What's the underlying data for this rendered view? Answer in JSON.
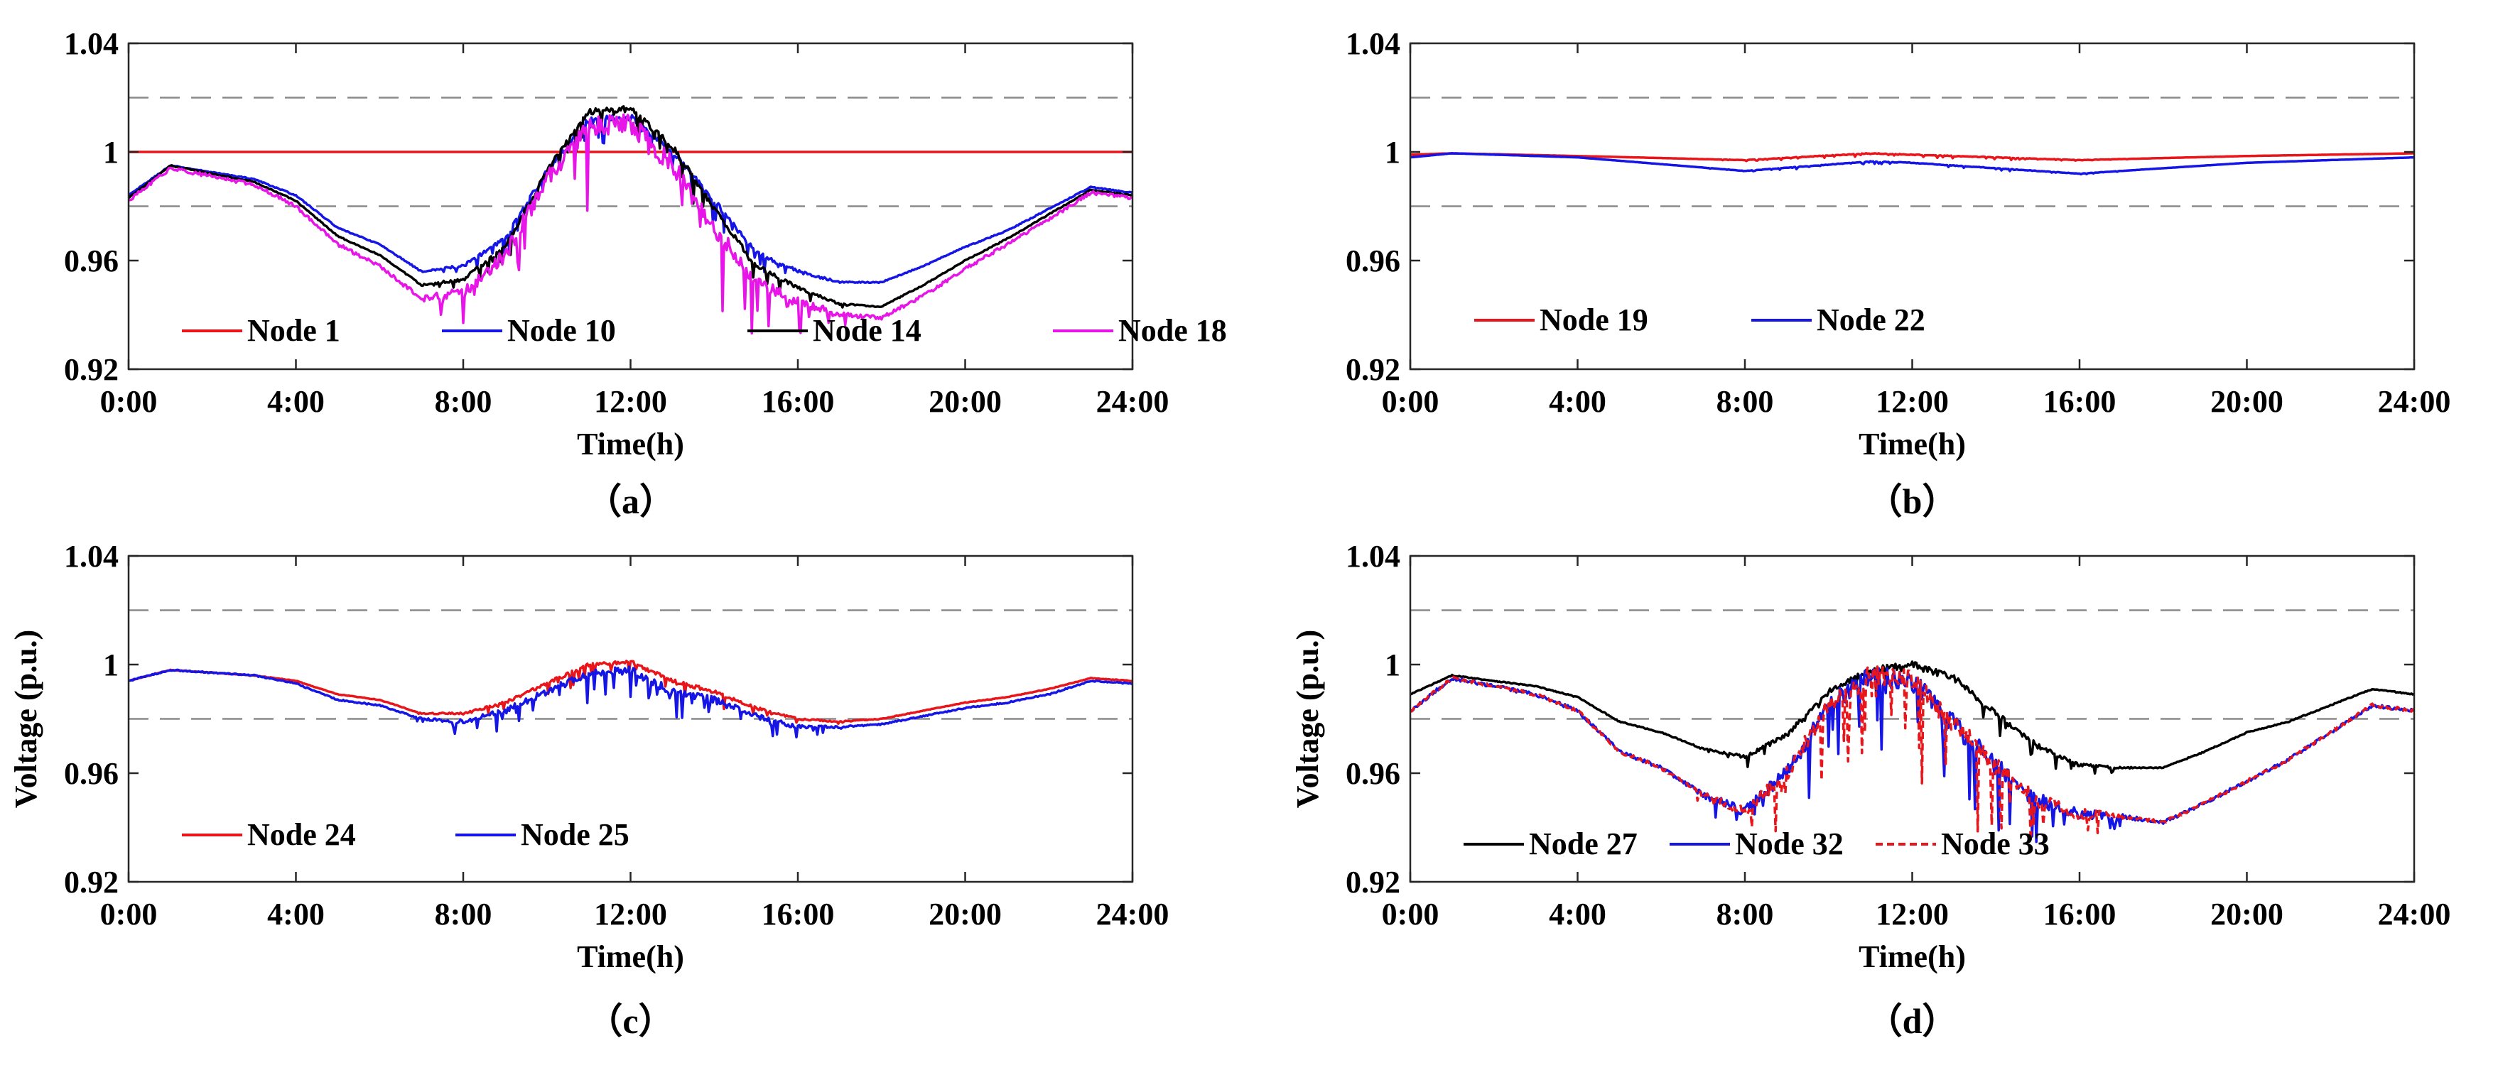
{
  "chart_data": [
    {
      "id": "a",
      "type": "line",
      "caption": "（a）",
      "xlabel": "Time(h)",
      "ylabel": "",
      "xlim": [
        0,
        24
      ],
      "ylim": [
        0.92,
        1.04
      ],
      "xticks": [
        0,
        4,
        8,
        12,
        16,
        20,
        24
      ],
      "xtick_labels": [
        "0:00",
        "4:00",
        "8:00",
        "12:00",
        "16:00",
        "20:00",
        "24:00"
      ],
      "yticks": [
        0.92,
        0.96,
        1.0,
        1.04
      ],
      "ytick_labels": [
        "0.92",
        "0.96",
        "1",
        "1.04"
      ],
      "reference_lines": [
        0.98,
        1.02
      ],
      "legend": [
        "Node 1",
        "Node 10",
        "Node 14",
        "Node 18"
      ],
      "series": [
        {
          "name": "Node 1",
          "color": "#e8151b",
          "noise": 0,
          "x": [
            0,
            24
          ],
          "values": [
            1.0,
            1.0
          ]
        },
        {
          "name": "Node 10",
          "color": "#1515e6",
          "noise": 0.5,
          "x": [
            0,
            1,
            3,
            4,
            5,
            6,
            7,
            8,
            9,
            10,
            11,
            12,
            13,
            14,
            15,
            16,
            17,
            18,
            19,
            20,
            21,
            22,
            23,
            24
          ],
          "values": [
            0.984,
            0.995,
            0.99,
            0.984,
            0.972,
            0.966,
            0.956,
            0.958,
            0.968,
            0.993,
            1.012,
            1.013,
            1.0,
            0.982,
            0.963,
            0.956,
            0.952,
            0.952,
            0.958,
            0.965,
            0.971,
            0.979,
            0.987,
            0.985
          ]
        },
        {
          "name": "Node 14",
          "color": "#000000",
          "noise": 0.5,
          "x": [
            0,
            1,
            3,
            4,
            5,
            6,
            7,
            8,
            9,
            10,
            11,
            12,
            13,
            14,
            15,
            16,
            17,
            18,
            19,
            20,
            21,
            22,
            23,
            24
          ],
          "values": [
            0.983,
            0.995,
            0.989,
            0.982,
            0.969,
            0.962,
            0.951,
            0.953,
            0.965,
            0.993,
            1.015,
            1.016,
            1.002,
            0.979,
            0.958,
            0.95,
            0.944,
            0.943,
            0.951,
            0.96,
            0.968,
            0.977,
            0.986,
            0.984
          ]
        },
        {
          "name": "Node 18",
          "color": "#e815e8",
          "noise": 1.6,
          "x": [
            0,
            1,
            3,
            4,
            5,
            6,
            7,
            8,
            9,
            10,
            11,
            12,
            13,
            14,
            15,
            16,
            17,
            18,
            19,
            20,
            21,
            22,
            23,
            24
          ],
          "values": [
            0.982,
            0.994,
            0.988,
            0.98,
            0.966,
            0.958,
            0.946,
            0.948,
            0.962,
            0.99,
            1.01,
            1.01,
            0.995,
            0.972,
            0.952,
            0.945,
            0.94,
            0.939,
            0.947,
            0.957,
            0.966,
            0.975,
            0.985,
            0.983
          ]
        }
      ]
    },
    {
      "id": "b",
      "type": "line",
      "caption": "（b）",
      "xlabel": "Time(h)",
      "ylabel": "",
      "xlim": [
        0,
        24
      ],
      "ylim": [
        0.92,
        1.04
      ],
      "xticks": [
        0,
        4,
        8,
        12,
        16,
        20,
        24
      ],
      "xtick_labels": [
        "0:00",
        "4:00",
        "8:00",
        "12:00",
        "16:00",
        "20:00",
        "24:00"
      ],
      "yticks": [
        0.92,
        0.96,
        1.0,
        1.04
      ],
      "ytick_labels": [
        "0.92",
        "0.96",
        "1",
        "1.04"
      ],
      "reference_lines": [
        0.98,
        1.02
      ],
      "legend": [
        "Node 19",
        "Node 22"
      ],
      "series": [
        {
          "name": "Node 19",
          "color": "#e8151b",
          "noise": 0.05,
          "x": [
            0,
            1,
            4,
            8,
            11,
            12,
            16,
            20,
            24
          ],
          "values": [
            0.999,
            0.9995,
            0.9985,
            0.997,
            0.9995,
            0.999,
            0.997,
            0.9985,
            0.9995
          ]
        },
        {
          "name": "Node 22",
          "color": "#1515e6",
          "noise": 0.05,
          "x": [
            0,
            1,
            4,
            8,
            11,
            12,
            16,
            20,
            24
          ],
          "values": [
            0.998,
            0.9995,
            0.998,
            0.993,
            0.9965,
            0.996,
            0.992,
            0.996,
            0.998
          ]
        }
      ]
    },
    {
      "id": "c",
      "type": "line",
      "caption": "（c）",
      "xlabel": "Time(h)",
      "ylabel": "Voltage (p.u.)",
      "xlim": [
        0,
        24
      ],
      "ylim": [
        0.92,
        1.04
      ],
      "xticks": [
        0,
        4,
        8,
        12,
        16,
        20,
        24
      ],
      "xtick_labels": [
        "0:00",
        "4:00",
        "8:00",
        "12:00",
        "16:00",
        "20:00",
        "24:00"
      ],
      "yticks": [
        0.92,
        0.96,
        1.0,
        1.04
      ],
      "ytick_labels": [
        "0.92",
        "0.96",
        "1",
        "1.04"
      ],
      "reference_lines": [
        0.98,
        1.02
      ],
      "legend": [
        "Node 24",
        "Node 25"
      ],
      "series": [
        {
          "name": "Node 24",
          "color": "#e8151b",
          "noise": 0.3,
          "x": [
            0,
            1,
            3,
            4,
            5,
            6,
            7,
            8,
            9,
            10,
            11,
            12,
            13,
            14,
            15,
            16,
            17,
            18,
            19,
            20,
            21,
            22,
            23,
            24
          ],
          "values": [
            0.994,
            0.998,
            0.996,
            0.994,
            0.989,
            0.987,
            0.982,
            0.982,
            0.986,
            0.993,
            1.0,
            1.001,
            0.994,
            0.99,
            0.984,
            0.98,
            0.979,
            0.98,
            0.983,
            0.986,
            0.988,
            0.991,
            0.995,
            0.994
          ]
        },
        {
          "name": "Node 25",
          "color": "#1515e6",
          "noise": 0.6,
          "x": [
            0,
            1,
            3,
            4,
            5,
            6,
            7,
            8,
            9,
            10,
            11,
            12,
            13,
            14,
            15,
            16,
            17,
            18,
            19,
            20,
            21,
            22,
            23,
            24
          ],
          "values": [
            0.994,
            0.998,
            0.996,
            0.993,
            0.987,
            0.985,
            0.98,
            0.979,
            0.983,
            0.99,
            0.997,
            0.998,
            0.99,
            0.987,
            0.981,
            0.977,
            0.977,
            0.978,
            0.981,
            0.984,
            0.986,
            0.989,
            0.994,
            0.993
          ]
        }
      ]
    },
    {
      "id": "d",
      "type": "line",
      "caption": "（d）",
      "xlabel": "Time(h)",
      "ylabel": "Voltage (p.u.)",
      "xlim": [
        0,
        24
      ],
      "ylim": [
        0.92,
        1.04
      ],
      "xticks": [
        0,
        4,
        8,
        12,
        16,
        20,
        24
      ],
      "xtick_labels": [
        "0:00",
        "4:00",
        "8:00",
        "12:00",
        "16:00",
        "20:00",
        "24:00"
      ],
      "yticks": [
        0.92,
        0.96,
        1.0,
        1.04
      ],
      "ytick_labels": [
        "0.92",
        "0.96",
        "1",
        "1.04"
      ],
      "reference_lines": [
        0.98,
        1.02
      ],
      "legend": [
        "Node 27",
        "Node 32",
        "Node 33"
      ],
      "series": [
        {
          "name": "Node 27",
          "color": "#000000",
          "noise": 0.5,
          "x": [
            0,
            1,
            3,
            4,
            5,
            6,
            7,
            8,
            9,
            10,
            11,
            12,
            13,
            14,
            15,
            16,
            17,
            18,
            19,
            20,
            21,
            22,
            23,
            24
          ],
          "values": [
            0.989,
            0.996,
            0.992,
            0.988,
            0.979,
            0.975,
            0.969,
            0.966,
            0.974,
            0.99,
            0.998,
            1.0,
            0.995,
            0.982,
            0.97,
            0.963,
            0.962,
            0.962,
            0.968,
            0.975,
            0.979,
            0.985,
            0.991,
            0.989
          ]
        },
        {
          "name": "Node 32",
          "color": "#1515e6",
          "noise": 1.6,
          "x": [
            0,
            1,
            3,
            4,
            5,
            6,
            7,
            8,
            9,
            10,
            11,
            12,
            13,
            14,
            15,
            16,
            17,
            18,
            19,
            20,
            21,
            22,
            23,
            24
          ],
          "values": [
            0.983,
            0.995,
            0.989,
            0.983,
            0.968,
            0.962,
            0.952,
            0.946,
            0.96,
            0.985,
            0.996,
            0.994,
            0.978,
            0.963,
            0.95,
            0.945,
            0.944,
            0.942,
            0.949,
            0.957,
            0.965,
            0.975,
            0.985,
            0.983
          ]
        },
        {
          "name": "Node 33",
          "color": "#e8151b",
          "dashed": true,
          "noise": 1.6,
          "x": [
            0,
            1,
            3,
            4,
            5,
            6,
            7,
            8,
            9,
            10,
            11,
            12,
            13,
            14,
            15,
            16,
            17,
            18,
            19,
            20,
            21,
            22,
            23,
            24
          ],
          "values": [
            0.983,
            0.995,
            0.989,
            0.983,
            0.968,
            0.962,
            0.952,
            0.946,
            0.96,
            0.985,
            0.996,
            0.994,
            0.978,
            0.963,
            0.95,
            0.945,
            0.944,
            0.942,
            0.949,
            0.957,
            0.965,
            0.975,
            0.985,
            0.983
          ]
        }
      ]
    }
  ]
}
